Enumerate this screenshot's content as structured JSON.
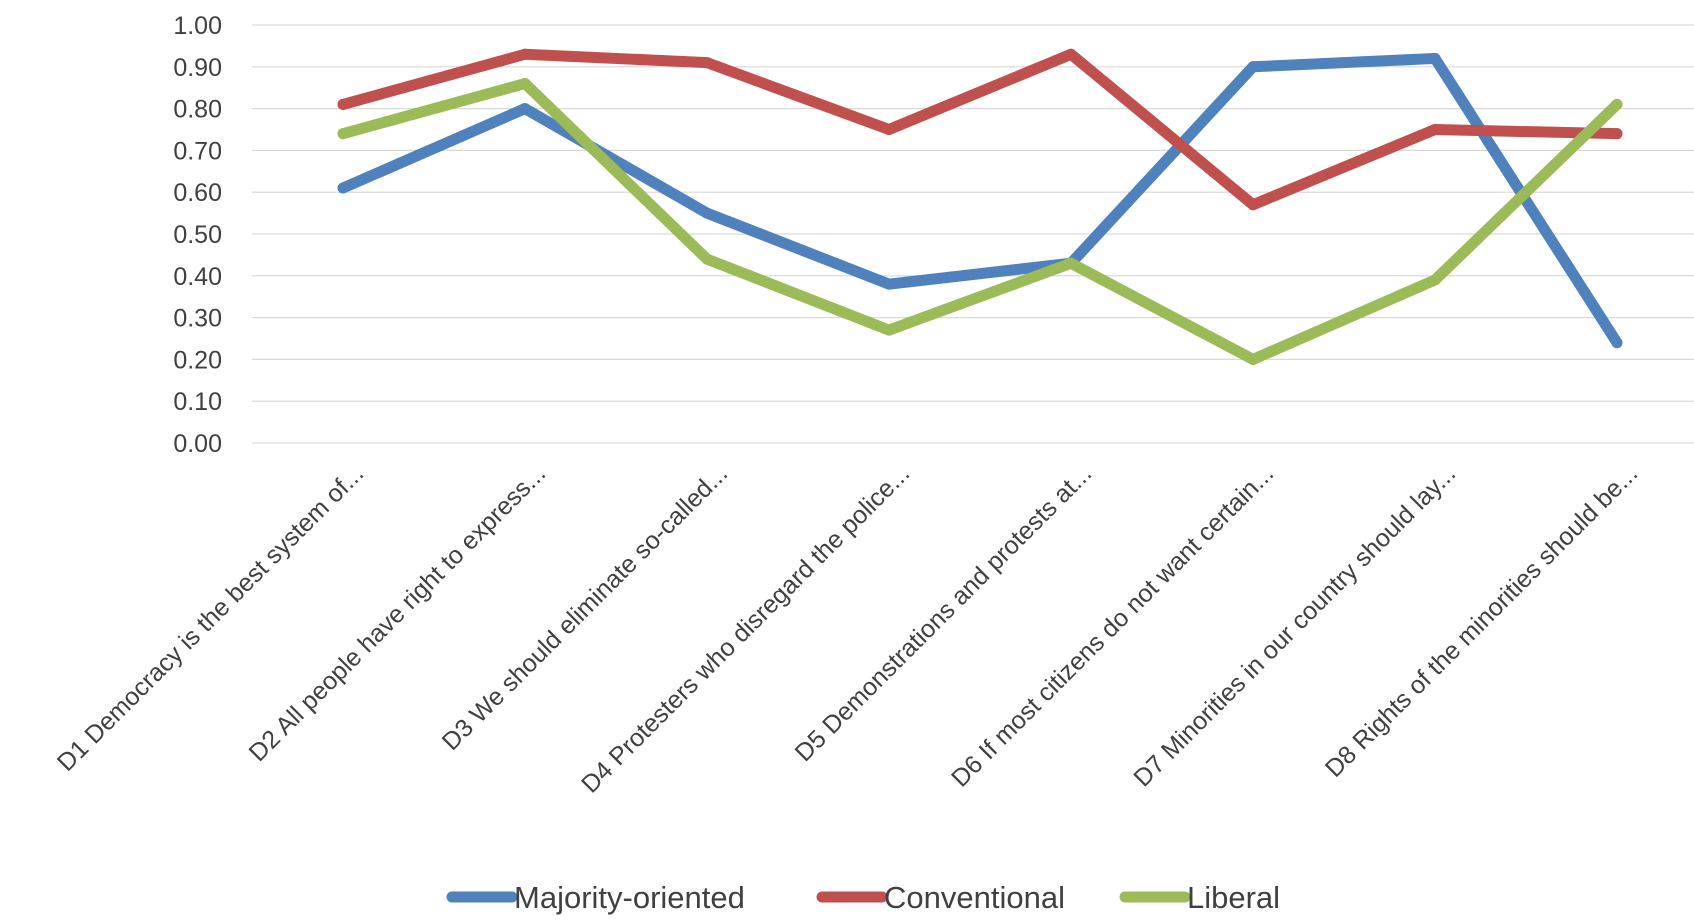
{
  "chart_data": {
    "type": "line",
    "categories": [
      "D1 Democracy is the best system of...",
      "D2 All people have right to express...",
      "D3 We should eliminate so-called...",
      "D4 Protesters who disregard the police...",
      "D5 Demonstrations and protests at...",
      "D6 If most citizens do not want certain...",
      "D7 Minorities in our country should lay...",
      "D8 Rights of the minorities should be..."
    ],
    "series": [
      {
        "name": "Majority-oriented",
        "color": "#4f81bd",
        "values": [
          0.61,
          0.8,
          0.55,
          0.38,
          0.43,
          0.9,
          0.92,
          0.24
        ]
      },
      {
        "name": "Conventional",
        "color": "#c0504d",
        "values": [
          0.81,
          0.93,
          0.91,
          0.75,
          0.93,
          0.57,
          0.75,
          0.74
        ]
      },
      {
        "name": "Liberal",
        "color": "#9bbb59",
        "values": [
          0.74,
          0.86,
          0.44,
          0.27,
          0.43,
          0.2,
          0.39,
          0.81
        ]
      }
    ],
    "y_ticks": [
      "0.00",
      "0.10",
      "0.20",
      "0.30",
      "0.40",
      "0.50",
      "0.60",
      "0.70",
      "0.80",
      "0.90",
      "1.00"
    ],
    "ylim": [
      0,
      1
    ],
    "grid": true,
    "legend_position": "bottom",
    "title": "",
    "xlabel": "",
    "ylabel": ""
  }
}
